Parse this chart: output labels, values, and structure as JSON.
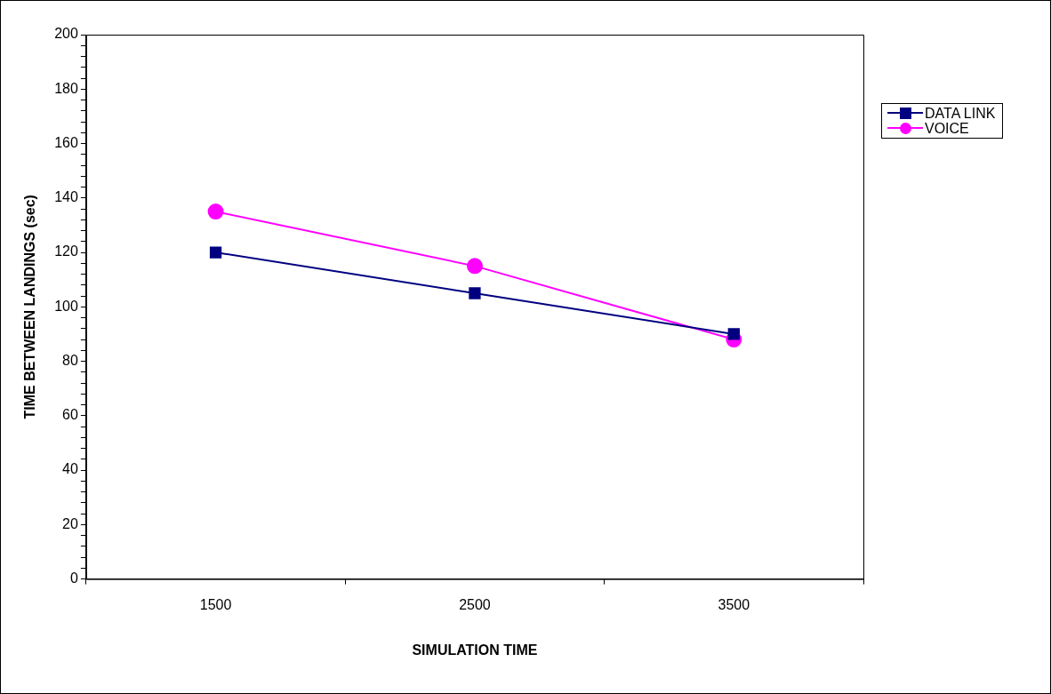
{
  "chart_data": {
    "type": "line",
    "xlabel": "SIMULATION TIME",
    "ylabel": "TIME BETWEEN LANDINGS (sec)",
    "categories": [
      "1500",
      "2500",
      "3500"
    ],
    "series": [
      {
        "name": "DATA LINK",
        "color": "#000080",
        "marker": "square",
        "values": [
          120,
          105,
          90
        ]
      },
      {
        "name": "VOICE",
        "color": "#ff00ff",
        "marker": "circle",
        "values": [
          135,
          115,
          88
        ]
      }
    ],
    "ylim": [
      0,
      200
    ],
    "yticks": [
      0,
      {
        "value": 4,
        "label": null
      },
      {
        "value": 8,
        "label": null
      },
      {
        "value": 12,
        "label": null
      },
      {
        "value": 16,
        "label": null
      },
      20,
      {
        "value": 24,
        "label": null
      },
      {
        "value": 28,
        "label": null
      },
      {
        "value": 32,
        "label": null
      },
      {
        "value": 36,
        "label": null
      },
      40,
      {
        "value": 44,
        "label": null
      },
      {
        "value": 48,
        "label": null
      },
      {
        "value": 52,
        "label": null
      },
      {
        "value": 56,
        "label": null
      },
      60,
      {
        "value": 64,
        "label": null
      },
      {
        "value": 68,
        "label": null
      },
      {
        "value": 72,
        "label": null
      },
      {
        "value": 76,
        "label": null
      },
      80,
      {
        "value": 84,
        "label": null
      },
      {
        "value": 88,
        "label": null
      },
      {
        "value": 92,
        "label": null
      },
      {
        "value": 96,
        "label": null
      },
      100,
      {
        "value": 104,
        "label": null
      },
      {
        "value": 108,
        "label": null
      },
      {
        "value": 112,
        "label": null
      },
      {
        "value": 116,
        "label": null
      },
      120,
      {
        "value": 124,
        "label": null
      },
      {
        "value": 128,
        "label": null
      },
      {
        "value": 132,
        "label": null
      },
      {
        "value": 136,
        "label": null
      },
      140,
      {
        "value": 144,
        "label": null
      },
      {
        "value": 148,
        "label": null
      },
      {
        "value": 152,
        "label": null
      },
      {
        "value": 156,
        "label": null
      },
      160,
      {
        "value": 164,
        "label": null
      },
      {
        "value": 168,
        "label": null
      },
      {
        "value": 172,
        "label": null
      },
      {
        "value": 176,
        "label": null
      },
      180,
      {
        "value": 184,
        "label": null
      },
      {
        "value": 188,
        "label": null
      },
      {
        "value": 192,
        "label": null
      },
      {
        "value": 196,
        "label": null
      },
      200
    ],
    "grid": false,
    "legend": "right",
    "line_style": "solid"
  }
}
